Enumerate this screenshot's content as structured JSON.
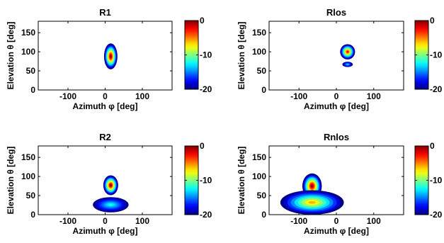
{
  "figure": {
    "colorbar": {
      "ticks": [
        0,
        -10,
        -20
      ],
      "tick_labels": [
        "0",
        "-10",
        "-20"
      ],
      "range": [
        -20,
        0
      ],
      "colormap": "jet"
    }
  },
  "chart_data": [
    {
      "type": "heatmap",
      "title": "R1",
      "xlabel": "Azimuth φ [deg]",
      "ylabel": "Elevation θ [deg]",
      "xlim": [
        -180,
        180
      ],
      "ylim": [
        0,
        180
      ],
      "xticks": [
        -100,
        0,
        100
      ],
      "yticks": [
        0,
        50,
        100,
        150
      ],
      "blobs": [
        {
          "az": 15,
          "el": 88,
          "az_halfwidth": 18,
          "el_halfwidth": 34,
          "peak_db": 0,
          "edge_db": -20
        }
      ]
    },
    {
      "type": "heatmap",
      "title": "Rlos",
      "xlabel": "Azimuth φ [deg]",
      "ylabel": "Elevation θ [deg]",
      "xlim": [
        -180,
        180
      ],
      "ylim": [
        0,
        180
      ],
      "xticks": [
        -100,
        0,
        100
      ],
      "yticks": [
        0,
        50,
        100,
        150
      ],
      "blobs": [
        {
          "az": 30,
          "el": 100,
          "az_halfwidth": 20,
          "el_halfwidth": 20,
          "peak_db": -2,
          "edge_db": -20
        },
        {
          "az": 30,
          "el": 67,
          "az_halfwidth": 14,
          "el_halfwidth": 7,
          "peak_db": -13,
          "edge_db": -20
        }
      ]
    },
    {
      "type": "heatmap",
      "title": "R2",
      "xlabel": "Azimuth φ [deg]",
      "ylabel": "Elevation θ [deg]",
      "xlim": [
        -180,
        180
      ],
      "ylim": [
        0,
        180
      ],
      "xticks": [
        -100,
        0,
        100
      ],
      "yticks": [
        0,
        50,
        100,
        150
      ],
      "blobs": [
        {
          "az": 15,
          "el": 77,
          "az_halfwidth": 20,
          "el_halfwidth": 26,
          "peak_db": 0,
          "edge_db": -20
        },
        {
          "az": 15,
          "el": 26,
          "az_halfwidth": 48,
          "el_halfwidth": 20,
          "peak_db": -12,
          "edge_db": -20
        }
      ]
    },
    {
      "type": "heatmap",
      "title": "Rnlos",
      "xlabel": "Azimuth φ [deg]",
      "ylabel": "Elevation θ [deg]",
      "xlim": [
        -180,
        180
      ],
      "ylim": [
        0,
        180
      ],
      "xticks": [
        -100,
        0,
        100
      ],
      "yticks": [
        0,
        50,
        100,
        150
      ],
      "blobs": [
        {
          "az": -65,
          "el": 75,
          "az_halfwidth": 26,
          "el_halfwidth": 33,
          "peak_db": 0,
          "edge_db": -20
        },
        {
          "az": -65,
          "el": 32,
          "az_halfwidth": 85,
          "el_halfwidth": 32,
          "peak_db": -6,
          "edge_db": -20
        }
      ]
    }
  ]
}
